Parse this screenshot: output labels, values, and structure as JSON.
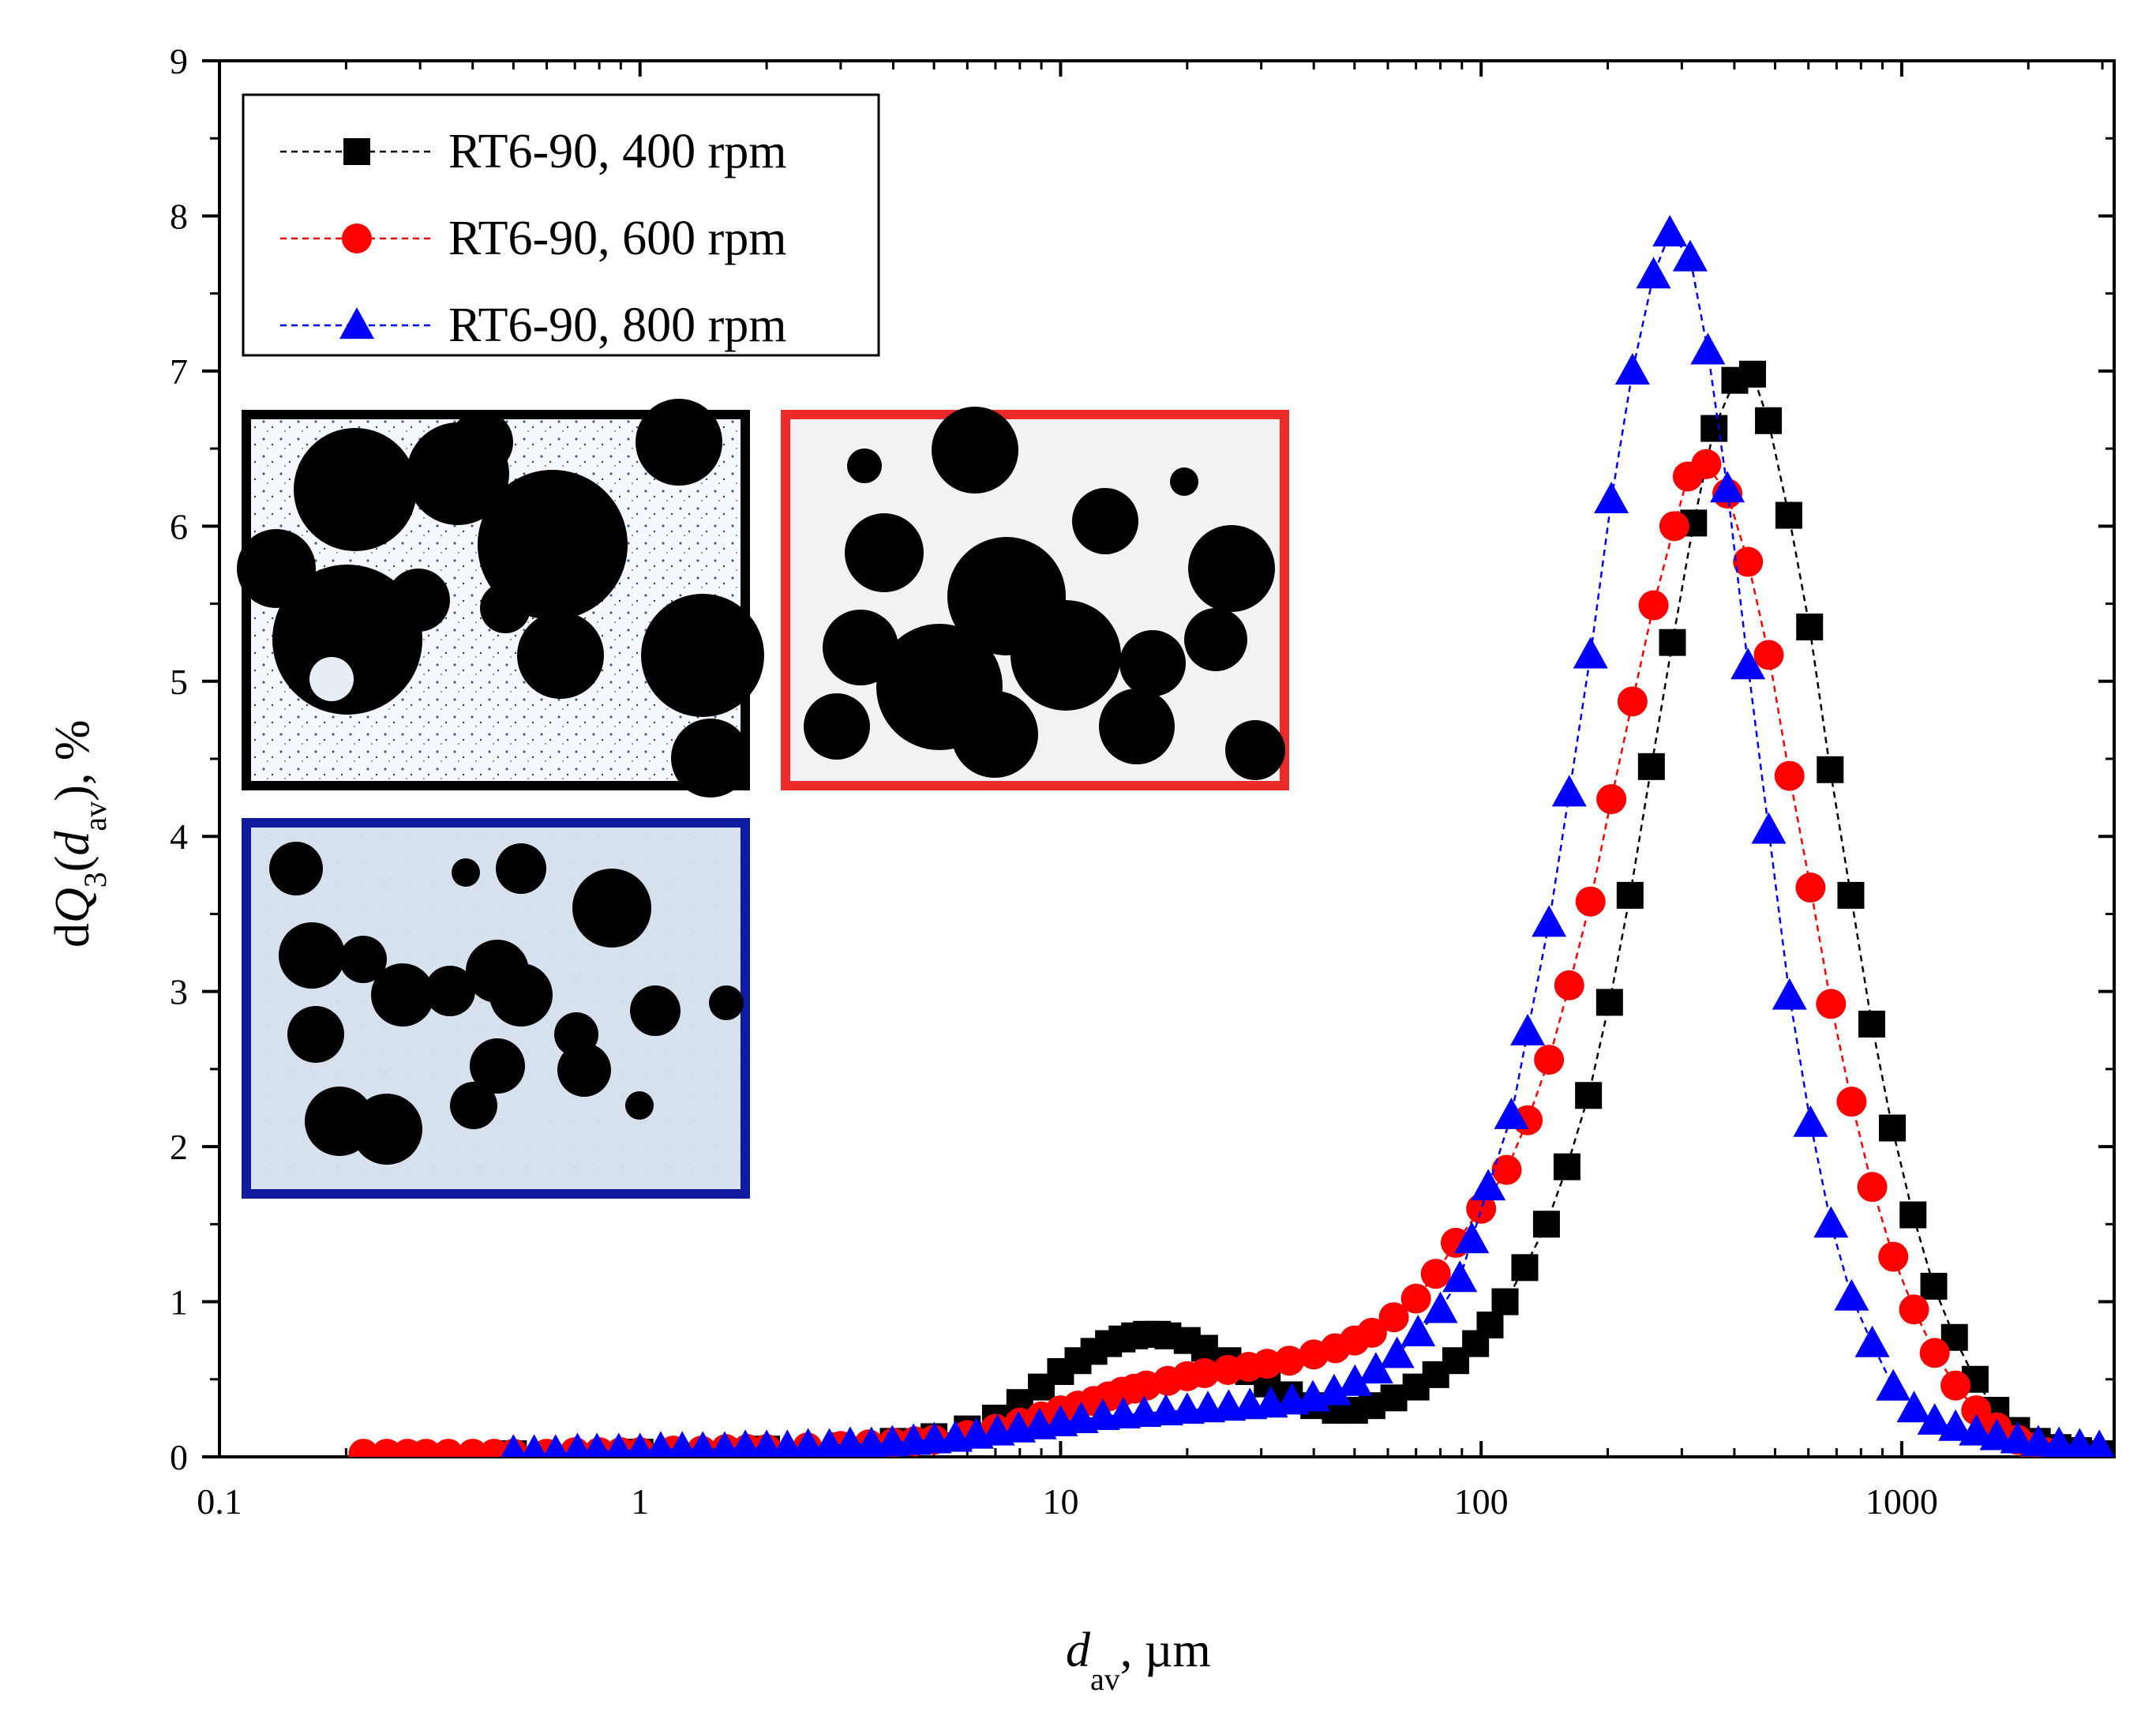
{
  "chart_data": {
    "type": "scatter",
    "xscale": "log",
    "xlim": [
      0.1,
      3200
    ],
    "ylim": [
      0,
      9
    ],
    "xticks": [
      0.1,
      1,
      10,
      100,
      1000
    ],
    "xtick_labels": [
      "0.1",
      "1",
      "10",
      "100",
      "1000"
    ],
    "yticks": [
      0,
      1,
      2,
      3,
      4,
      5,
      6,
      7,
      8,
      9
    ],
    "ytick_labels": [
      "0",
      "1",
      "2",
      "3",
      "4",
      "5",
      "6",
      "7",
      "8",
      "9"
    ],
    "xlabel": {
      "main": "d",
      "sub": "av",
      "rest": ", µm"
    },
    "ylabel": {
      "p1": "d",
      "Q": "Q",
      "sub1": "3",
      "p2": "(",
      "d": "d",
      "sub2": "av",
      "p3": "), %"
    },
    "legend_position": "top-left",
    "series": [
      {
        "name": "RT6-90, 400 rpm",
        "color": "#000000",
        "marker": "square",
        "points": [
          [
            0.5,
            0.02
          ],
          [
            1,
            0.03
          ],
          [
            2,
            0.05
          ],
          [
            3,
            0.07
          ],
          [
            4,
            0.1
          ],
          [
            5,
            0.13
          ],
          [
            6,
            0.18
          ],
          [
            7,
            0.25
          ],
          [
            8,
            0.35
          ],
          [
            9,
            0.45
          ],
          [
            10,
            0.55
          ],
          [
            11,
            0.62
          ],
          [
            12,
            0.68
          ],
          [
            13,
            0.73
          ],
          [
            14,
            0.76
          ],
          [
            15,
            0.78
          ],
          [
            16,
            0.79
          ],
          [
            17,
            0.79
          ],
          [
            18,
            0.78
          ],
          [
            20,
            0.75
          ],
          [
            22,
            0.7
          ],
          [
            25,
            0.62
          ],
          [
            28,
            0.55
          ],
          [
            31,
            0.47
          ],
          [
            35,
            0.4
          ],
          [
            40,
            0.33
          ],
          [
            45,
            0.3
          ],
          [
            50,
            0.3
          ],
          [
            55,
            0.33
          ],
          [
            62,
            0.38
          ],
          [
            70,
            0.45
          ],
          [
            78,
            0.53
          ],
          [
            87,
            0.62
          ],
          [
            97,
            0.73
          ],
          [
            105,
            0.85
          ],
          [
            114,
            1.0
          ],
          [
            127,
            1.22
          ],
          [
            143,
            1.5
          ],
          [
            160,
            1.87
          ],
          [
            180,
            2.33
          ],
          [
            202,
            2.93
          ],
          [
            226,
            3.62
          ],
          [
            254,
            4.45
          ],
          [
            285,
            5.25
          ],
          [
            320,
            6.02
          ],
          [
            358,
            6.63
          ],
          [
            401,
            6.94
          ],
          [
            442,
            6.98
          ],
          [
            482,
            6.68
          ],
          [
            539,
            6.07
          ],
          [
            604,
            5.35
          ],
          [
            676,
            4.43
          ],
          [
            757,
            3.62
          ],
          [
            849,
            2.79
          ],
          [
            950,
            2.12
          ],
          [
            1064,
            1.56
          ],
          [
            1192,
            1.1
          ],
          [
            1335,
            0.77
          ],
          [
            1495,
            0.5
          ],
          [
            1675,
            0.3
          ],
          [
            1876,
            0.17
          ],
          [
            2101,
            0.1
          ],
          [
            2353,
            0.06
          ],
          [
            2635,
            0.04
          ],
          [
            2952,
            0.02
          ]
        ]
      },
      {
        "name": "RT6-90, 600 rpm",
        "color": "#ff0000",
        "marker": "circle",
        "points": [
          [
            0.22,
            0.02
          ],
          [
            0.25,
            0.02
          ],
          [
            0.28,
            0.02
          ],
          [
            0.31,
            0.02
          ],
          [
            0.35,
            0.02
          ],
          [
            0.4,
            0.02
          ],
          [
            0.45,
            0.02
          ],
          [
            0.5,
            0.02
          ],
          [
            0.6,
            0.02
          ],
          [
            0.7,
            0.03
          ],
          [
            0.8,
            0.03
          ],
          [
            0.9,
            0.03
          ],
          [
            1,
            0.03
          ],
          [
            1.2,
            0.04
          ],
          [
            1.4,
            0.04
          ],
          [
            1.6,
            0.05
          ],
          [
            1.8,
            0.05
          ],
          [
            2,
            0.05
          ],
          [
            2.5,
            0.06
          ],
          [
            3,
            0.07
          ],
          [
            3.5,
            0.08
          ],
          [
            4,
            0.09
          ],
          [
            4.5,
            0.1
          ],
          [
            5,
            0.11
          ],
          [
            6,
            0.14
          ],
          [
            7,
            0.18
          ],
          [
            8,
            0.22
          ],
          [
            9,
            0.26
          ],
          [
            10,
            0.3
          ],
          [
            11,
            0.33
          ],
          [
            12,
            0.36
          ],
          [
            13,
            0.39
          ],
          [
            14,
            0.42
          ],
          [
            15,
            0.44
          ],
          [
            16,
            0.46
          ],
          [
            18,
            0.49
          ],
          [
            20,
            0.52
          ],
          [
            22,
            0.54
          ],
          [
            25,
            0.56
          ],
          [
            28,
            0.58
          ],
          [
            31,
            0.6
          ],
          [
            35,
            0.62
          ],
          [
            40,
            0.66
          ],
          [
            45,
            0.7
          ],
          [
            50,
            0.75
          ],
          [
            55,
            0.8
          ],
          [
            62,
            0.9
          ],
          [
            70,
            1.02
          ],
          [
            78,
            1.18
          ],
          [
            87,
            1.38
          ],
          [
            100,
            1.6
          ],
          [
            115,
            1.85
          ],
          [
            129,
            2.17
          ],
          [
            145,
            2.56
          ],
          [
            162,
            3.04
          ],
          [
            182,
            3.58
          ],
          [
            204,
            4.24
          ],
          [
            229,
            4.87
          ],
          [
            257,
            5.49
          ],
          [
            288,
            6.0
          ],
          [
            310,
            6.32
          ],
          [
            343,
            6.4
          ],
          [
            385,
            6.21
          ],
          [
            431,
            5.77
          ],
          [
            483,
            5.17
          ],
          [
            541,
            4.39
          ],
          [
            607,
            3.67
          ],
          [
            679,
            2.92
          ],
          [
            760,
            2.29
          ],
          [
            851,
            1.74
          ],
          [
            955,
            1.29
          ],
          [
            1070,
            0.95
          ],
          [
            1198,
            0.67
          ],
          [
            1343,
            0.46
          ],
          [
            1504,
            0.3
          ],
          [
            1684,
            0.19
          ],
          [
            1886,
            0.11
          ],
          [
            2050,
            0.06
          ],
          [
            2200,
            0.03
          ]
        ]
      },
      {
        "name": "RT6-90, 800 rpm",
        "color": "#0000ff",
        "marker": "triangle",
        "points": [
          [
            0.5,
            0.03
          ],
          [
            0.56,
            0.03
          ],
          [
            0.63,
            0.03
          ],
          [
            0.71,
            0.04
          ],
          [
            0.79,
            0.04
          ],
          [
            0.89,
            0.04
          ],
          [
            1,
            0.04
          ],
          [
            1.12,
            0.05
          ],
          [
            1.26,
            0.05
          ],
          [
            1.41,
            0.05
          ],
          [
            1.59,
            0.05
          ],
          [
            1.78,
            0.06
          ],
          [
            2,
            0.06
          ],
          [
            2.24,
            0.06
          ],
          [
            2.51,
            0.07
          ],
          [
            2.82,
            0.07
          ],
          [
            3.16,
            0.08
          ],
          [
            3.55,
            0.08
          ],
          [
            3.98,
            0.09
          ],
          [
            4.47,
            0.1
          ],
          [
            5.01,
            0.11
          ],
          [
            5.62,
            0.12
          ],
          [
            6.31,
            0.14
          ],
          [
            7.08,
            0.16
          ],
          [
            7.94,
            0.18
          ],
          [
            8.91,
            0.2
          ],
          [
            10,
            0.22
          ],
          [
            11.2,
            0.24
          ],
          [
            12.6,
            0.26
          ],
          [
            14.1,
            0.27
          ],
          [
            15.8,
            0.28
          ],
          [
            17.8,
            0.29
          ],
          [
            20,
            0.3
          ],
          [
            22.4,
            0.31
          ],
          [
            25.1,
            0.32
          ],
          [
            28.2,
            0.33
          ],
          [
            31.6,
            0.34
          ],
          [
            35.5,
            0.36
          ],
          [
            39.8,
            0.38
          ],
          [
            44.7,
            0.42
          ],
          [
            50.1,
            0.48
          ],
          [
            56.2,
            0.56
          ],
          [
            63.1,
            0.66
          ],
          [
            70.8,
            0.8
          ],
          [
            80,
            0.95
          ],
          [
            89,
            1.15
          ],
          [
            95,
            1.4
          ],
          [
            104,
            1.74
          ],
          [
            118,
            2.2
          ],
          [
            129,
            2.74
          ],
          [
            145,
            3.44
          ],
          [
            162,
            4.28
          ],
          [
            182,
            5.17
          ],
          [
            204,
            6.17
          ],
          [
            229,
            7.0
          ],
          [
            257,
            7.62
          ],
          [
            281,
            7.89
          ],
          [
            314,
            7.73
          ],
          [
            346,
            7.13
          ],
          [
            385,
            6.24
          ],
          [
            431,
            5.1
          ],
          [
            483,
            4.04
          ],
          [
            541,
            2.97
          ],
          [
            607,
            2.15
          ],
          [
            679,
            1.5
          ],
          [
            760,
            1.03
          ],
          [
            851,
            0.73
          ],
          [
            955,
            0.45
          ],
          [
            1070,
            0.31
          ],
          [
            1198,
            0.23
          ],
          [
            1343,
            0.19
          ],
          [
            1504,
            0.16
          ],
          [
            1684,
            0.13
          ],
          [
            1886,
            0.11
          ],
          [
            2113,
            0.09
          ],
          [
            2366,
            0.08
          ],
          [
            2650,
            0.07
          ],
          [
            2950,
            0.06
          ]
        ]
      }
    ]
  }
}
